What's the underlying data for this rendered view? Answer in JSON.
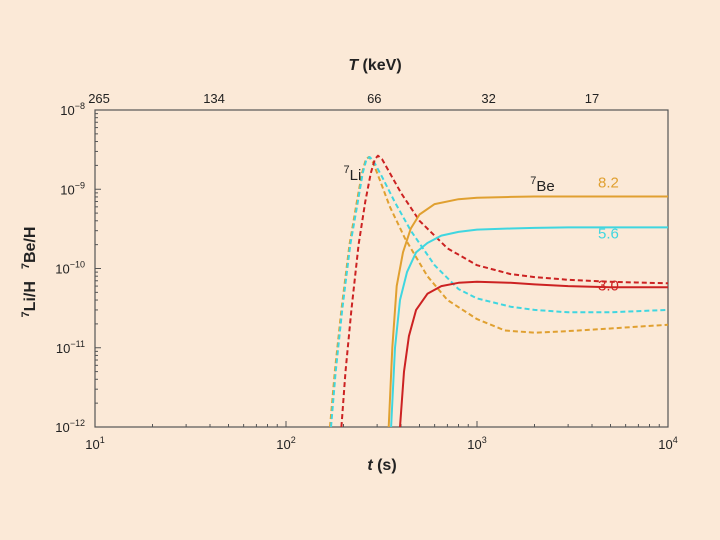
{
  "chart_data": {
    "type": "line",
    "xscale": "log",
    "yscale": "log",
    "xlim": [
      10,
      10000
    ],
    "ylim": [
      1e-12,
      1e-08
    ],
    "xlabel": {
      "main": "t",
      "unit": " (s)"
    },
    "top_xlabel": {
      "main": "T",
      "unit": " (keV)"
    },
    "ylabel": {
      "a_sup": "7",
      "a": "Li/H",
      "b_sup": "7",
      "b": "Be/H"
    },
    "x_ticks": [
      {
        "v": 10,
        "base": "10",
        "exp": "1"
      },
      {
        "v": 100,
        "base": "10",
        "exp": "2"
      },
      {
        "v": 1000,
        "base": "10",
        "exp": "3"
      },
      {
        "v": 10000,
        "base": "10",
        "exp": "4"
      }
    ],
    "y_ticks": [
      {
        "v": 1e-08,
        "base": "10",
        "exp": "−8"
      },
      {
        "v": 1e-09,
        "base": "10",
        "exp": "−9"
      },
      {
        "v": 1e-10,
        "base": "10",
        "exp": "−10"
      },
      {
        "v": 1e-11,
        "base": "10",
        "exp": "−11"
      },
      {
        "v": 1e-12,
        "base": "10",
        "exp": "−12"
      }
    ],
    "top_ticks": [
      {
        "t": 10.5,
        "label": "265"
      },
      {
        "t": 42,
        "label": "134"
      },
      {
        "t": 290,
        "label": "66"
      },
      {
        "t": 1150,
        "label": "32"
      },
      {
        "t": 4000,
        "label": "17"
      }
    ],
    "annotations": [
      {
        "name": "li7-label",
        "sup": "7",
        "text": "Li",
        "t": 200,
        "y": 1.3e-09,
        "color": "#222222"
      },
      {
        "name": "be7-label",
        "sup": "7",
        "text": "Be",
        "t": 1900,
        "y": 9.5e-10,
        "color": "#222222"
      },
      {
        "name": "eta-8-2-label",
        "text": "8.2",
        "t": 4300,
        "y": 1.05e-09,
        "color": "#e0a030"
      },
      {
        "name": "eta-5-6-label",
        "text": "5.6",
        "t": 4300,
        "y": 2.4e-10,
        "color": "#3fd6e0"
      },
      {
        "name": "eta-3-0-label",
        "text": "3.0",
        "t": 4300,
        "y": 5.3e-11,
        "color": "#cc2222"
      }
    ],
    "series": [
      {
        "name": "7Li, η=8.2",
        "style": "dashed",
        "color": "#e0a030",
        "points": [
          [
            170,
            1e-12
          ],
          [
            180,
            5e-12
          ],
          [
            195,
            3e-11
          ],
          [
            215,
            2e-10
          ],
          [
            235,
            7e-10
          ],
          [
            250,
            1.6e-09
          ],
          [
            262,
            2.4e-09
          ],
          [
            272,
            2.55e-09
          ],
          [
            285,
            2.2e-09
          ],
          [
            310,
            1.3e-09
          ],
          [
            350,
            6e-10
          ],
          [
            420,
            2.4e-10
          ],
          [
            550,
            8e-11
          ],
          [
            700,
            4e-11
          ],
          [
            1000,
            2.3e-11
          ],
          [
            1400,
            1.65e-11
          ],
          [
            2000,
            1.55e-11
          ],
          [
            3000,
            1.62e-11
          ],
          [
            5000,
            1.75e-11
          ],
          [
            7000,
            1.85e-11
          ],
          [
            10000,
            1.95e-11
          ]
        ]
      },
      {
        "name": "7Li, η=5.6",
        "style": "dashed",
        "color": "#3fd6e0",
        "points": [
          [
            172,
            1e-12
          ],
          [
            182,
            5e-12
          ],
          [
            197,
            3e-11
          ],
          [
            217,
            2e-10
          ],
          [
            238,
            7e-10
          ],
          [
            252,
            1.6e-09
          ],
          [
            264,
            2.4e-09
          ],
          [
            274,
            2.55e-09
          ],
          [
            288,
            2.25e-09
          ],
          [
            320,
            1.4e-09
          ],
          [
            370,
            7e-10
          ],
          [
            450,
            3e-10
          ],
          [
            600,
            1.1e-10
          ],
          [
            800,
            5.5e-11
          ],
          [
            1000,
            4.2e-11
          ],
          [
            1500,
            3.3e-11
          ],
          [
            2000,
            3e-11
          ],
          [
            3000,
            2.8e-11
          ],
          [
            5000,
            2.8e-11
          ],
          [
            10000,
            3e-11
          ]
        ]
      },
      {
        "name": "7Li, η=3.0",
        "style": "dashed",
        "color": "#cc2222",
        "points": [
          [
            195,
            1e-12
          ],
          [
            205,
            5e-12
          ],
          [
            220,
            3e-11
          ],
          [
            240,
            2e-10
          ],
          [
            260,
            7e-10
          ],
          [
            278,
            1.6e-09
          ],
          [
            292,
            2.4e-09
          ],
          [
            303,
            2.65e-09
          ],
          [
            318,
            2.4e-09
          ],
          [
            350,
            1.6e-09
          ],
          [
            400,
            9e-10
          ],
          [
            500,
            4e-10
          ],
          [
            700,
            1.8e-10
          ],
          [
            1000,
            1.1e-10
          ],
          [
            1500,
            8.5e-11
          ],
          [
            2000,
            7.8e-11
          ],
          [
            3000,
            7.2e-11
          ],
          [
            5000,
            6.8e-11
          ],
          [
            10000,
            6.5e-11
          ]
        ]
      },
      {
        "name": "7Be, η=8.2",
        "style": "solid",
        "color": "#e0a030",
        "points": [
          [
            345,
            1e-12
          ],
          [
            360,
            1e-11
          ],
          [
            380,
            6e-11
          ],
          [
            410,
            1.6e-10
          ],
          [
            450,
            3.2e-10
          ],
          [
            500,
            4.8e-10
          ],
          [
            600,
            6.5e-10
          ],
          [
            800,
            7.5e-10
          ],
          [
            1000,
            7.8e-10
          ],
          [
            1500,
            8e-10
          ],
          [
            2000,
            8.1e-10
          ],
          [
            3000,
            8.1e-10
          ],
          [
            5000,
            8.1e-10
          ],
          [
            10000,
            8.1e-10
          ]
        ]
      },
      {
        "name": "7Be, η=5.6",
        "style": "solid",
        "color": "#3fd6e0",
        "points": [
          [
            355,
            1e-12
          ],
          [
            372,
            1e-11
          ],
          [
            395,
            4e-11
          ],
          [
            430,
            9e-11
          ],
          [
            480,
            1.6e-10
          ],
          [
            550,
            2.1e-10
          ],
          [
            650,
            2.6e-10
          ],
          [
            800,
            2.9e-10
          ],
          [
            1000,
            3.1e-10
          ],
          [
            1500,
            3.2e-10
          ],
          [
            2000,
            3.25e-10
          ],
          [
            3000,
            3.3e-10
          ],
          [
            5000,
            3.3e-10
          ],
          [
            10000,
            3.3e-10
          ]
        ]
      },
      {
        "name": "7Be, η=3.0",
        "style": "solid",
        "color": "#cc2222",
        "points": [
          [
            395,
            1e-12
          ],
          [
            415,
            5e-12
          ],
          [
            440,
            1.4e-11
          ],
          [
            480,
            3e-11
          ],
          [
            550,
            4.8e-11
          ],
          [
            650,
            6e-11
          ],
          [
            800,
            6.6e-11
          ],
          [
            1000,
            6.8e-11
          ],
          [
            1500,
            6.6e-11
          ],
          [
            2000,
            6.3e-11
          ],
          [
            3000,
            6e-11
          ],
          [
            5000,
            5.8e-11
          ],
          [
            10000,
            5.8e-11
          ]
        ]
      }
    ]
  }
}
